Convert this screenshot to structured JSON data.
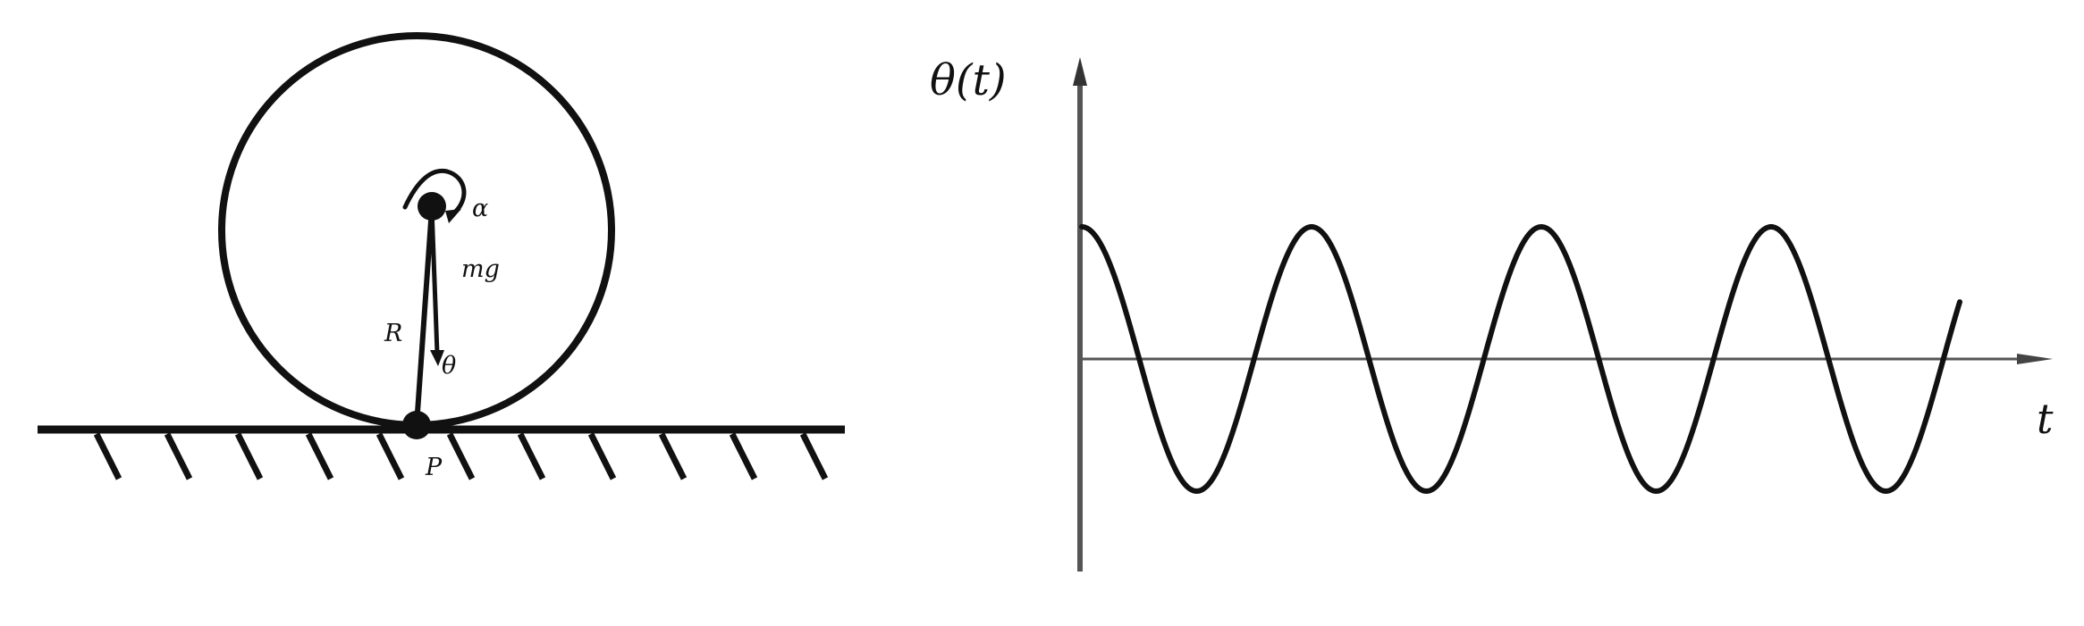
{
  "left_diagram": {
    "labels": {
      "alpha": "α",
      "mg": "mg",
      "radius": "R",
      "theta": "θ",
      "contact_point": "P"
    }
  },
  "right_graph": {
    "y_axis_label": "θ(t)",
    "x_axis_label": "t",
    "curve": {
      "shape": "cosine",
      "peaks_shown": 4,
      "troughs_shown": 4,
      "starts_at": "maximum"
    }
  }
}
